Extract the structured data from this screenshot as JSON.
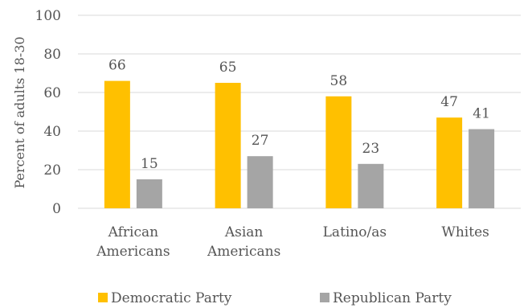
{
  "chart_data": {
    "type": "bar",
    "categories": [
      [
        "African",
        "Americans"
      ],
      [
        "Asian",
        "Americans"
      ],
      [
        "Latino/as"
      ],
      [
        "Whites"
      ]
    ],
    "series": [
      {
        "name": "Democratic Party",
        "values": [
          66,
          65,
          58,
          47
        ],
        "color": "#FFC000"
      },
      {
        "name": "Republican Party",
        "values": [
          15,
          27,
          23,
          41
        ],
        "color": "#A5A5A5"
      }
    ],
    "ylabel": "Percent of adults 18-30",
    "ylim": [
      0,
      100
    ],
    "yticks": [
      "0",
      "20",
      "40",
      "60",
      "80",
      "100"
    ],
    "grid": true,
    "legend_position": "bottom"
  }
}
